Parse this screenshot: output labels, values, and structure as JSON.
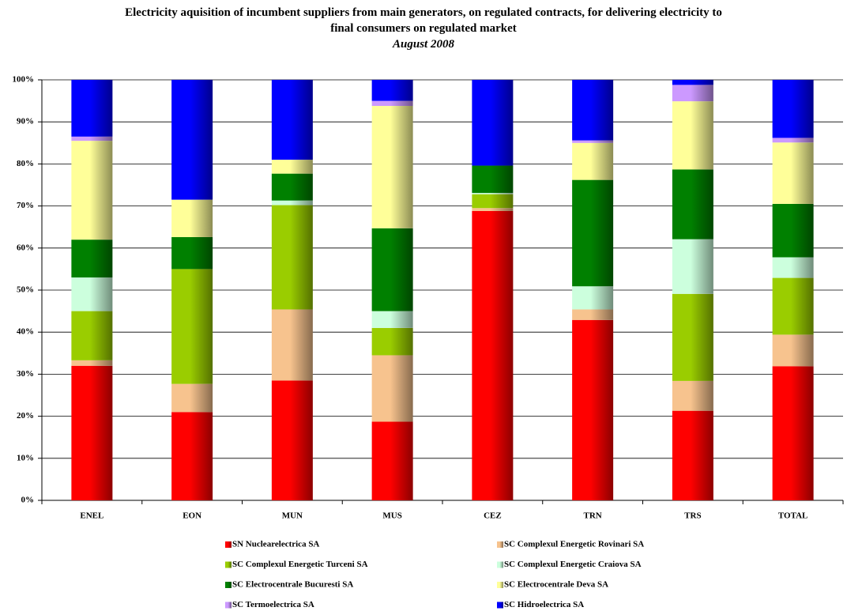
{
  "chart_data": {
    "type": "stacked_bar_percent",
    "title": "Electricity aquisition of incumbent suppliers from main generators, on regulated contracts, for delivering electricity to final consumers on regulated market",
    "subtitle": "August 2008",
    "categories": [
      "ENEL",
      "EON",
      "MUN",
      "MUS",
      "CEZ",
      "TRN",
      "TRS",
      "TOTAL"
    ],
    "series": [
      {
        "name": "SN Nuclearelectrica SA",
        "color": "#ff0000",
        "values": [
          32,
          21,
          28.5,
          18.7,
          68.8,
          42.9,
          21.3,
          31.9
        ]
      },
      {
        "name": "SC Complexul Energetic Rovinari SA",
        "color": "#f7c38e",
        "values": [
          1.3,
          6.7,
          16.9,
          15.8,
          0.7,
          2.5,
          7.1,
          7.5
        ]
      },
      {
        "name": "SC Complexul Energetic Turceni SA",
        "color": "#9acd00",
        "values": [
          11.7,
          27.3,
          24.8,
          6.5,
          3.3,
          0,
          20.7,
          13.5
        ]
      },
      {
        "name": "SC Complexul Energetic Craiova SA",
        "color": "#ccffdd",
        "values": [
          8,
          0,
          1.1,
          4,
          0.3,
          5.5,
          13,
          4.9
        ]
      },
      {
        "name": "SC Electrocentrale Bucuresti SA",
        "color": "#008000",
        "values": [
          9,
          7.6,
          6.4,
          19.7,
          6.5,
          25.3,
          16.6,
          12.7
        ]
      },
      {
        "name": "SC Electrocentrale Deva SA",
        "color": "#ffff99",
        "values": [
          23.5,
          8.9,
          3.3,
          29.1,
          0,
          8.8,
          16.2,
          14.6
        ]
      },
      {
        "name": "SC Termoelectrica SA",
        "color": "#cc99ff",
        "values": [
          1,
          0,
          0,
          1.2,
          0,
          0.6,
          3.9,
          1.1
        ]
      },
      {
        "name": "SC Hidroelectrica SA",
        "color": "#0000ff",
        "values": [
          13.5,
          28.5,
          19,
          5,
          20.4,
          14.4,
          1.2,
          13.8
        ]
      }
    ],
    "ylim": [
      0,
      100
    ],
    "yticks": [
      {
        "value": 0,
        "label": "0%"
      },
      {
        "value": 10,
        "label": "10%"
      },
      {
        "value": 20,
        "label": "20%"
      },
      {
        "value": 30,
        "label": "30%"
      },
      {
        "value": 40,
        "label": "40%"
      },
      {
        "value": 50,
        "label": "50%"
      },
      {
        "value": 60,
        "label": "60%"
      },
      {
        "value": 70,
        "label": "70%"
      },
      {
        "value": 80,
        "label": "80%"
      },
      {
        "value": 90,
        "label": "90%"
      },
      {
        "value": 100,
        "label": "100%"
      }
    ],
    "grid": true
  }
}
